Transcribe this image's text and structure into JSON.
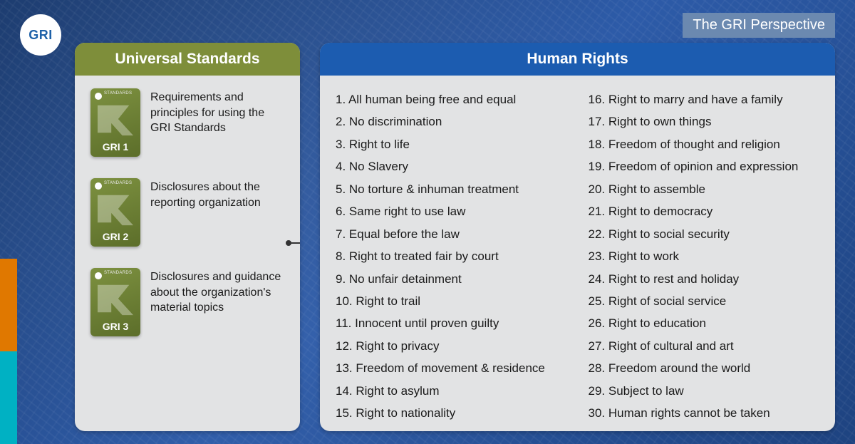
{
  "logo_text": "GRI",
  "perspective_label": "The GRI Perspective",
  "colors": {
    "left_header": "#7e8e3a",
    "right_header": "#1c5cb0",
    "panel_bg": "#e2e3e4",
    "card_gradient_from": "#7d9140",
    "card_gradient_to": "#5c6e2a",
    "accent_orange": "#e07800",
    "accent_teal": "#00b1c3",
    "logo_text_color": "#1e61a8"
  },
  "left": {
    "title": "Universal Standards",
    "items": [
      {
        "card_label": "GRI 1",
        "badge": "STANDARDS",
        "desc": "Requirements and principles for using the GRI Standards"
      },
      {
        "card_label": "GRI 2",
        "badge": "STANDARDS",
        "desc": "Disclosures about the reporting organization"
      },
      {
        "card_label": "GRI 3",
        "badge": "STANDARDS",
        "desc": "Disclosures and guidance about the organization's material topics"
      }
    ]
  },
  "right": {
    "title": "Human Rights",
    "items": [
      "All human being free and equal",
      "No discrimination",
      "Right to life",
      "No Slavery",
      "No torture & inhuman treatment",
      "Same right to use law",
      "Equal before the law",
      "Right to treated fair by court",
      "No unfair detainment",
      "Right to trail",
      "Innocent until proven guilty",
      "Right to privacy",
      "Freedom of movement & residence",
      "Right to asylum",
      "Right to nationality",
      "Right to marry and have a family",
      "Right to own things",
      "Freedom of thought and religion",
      "Freedom of opinion and expression",
      "Right to assemble",
      "Right to democracy",
      "Right to social security",
      "Right to work",
      "Right to rest and holiday",
      "Right of social service",
      "Right to education",
      "Right of cultural and art",
      "Freedom around the world",
      "Subject to law",
      "Human rights cannot be taken"
    ]
  }
}
